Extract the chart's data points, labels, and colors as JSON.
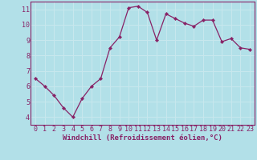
{
  "x": [
    0,
    1,
    2,
    3,
    4,
    5,
    6,
    7,
    8,
    9,
    10,
    11,
    12,
    13,
    14,
    15,
    16,
    17,
    18,
    19,
    20,
    21,
    22,
    23
  ],
  "y": [
    6.5,
    6.0,
    5.4,
    4.6,
    4.0,
    5.2,
    6.0,
    6.5,
    8.5,
    9.2,
    11.1,
    11.2,
    10.8,
    9.0,
    10.7,
    10.4,
    10.1,
    9.9,
    10.3,
    10.3,
    8.9,
    9.1,
    8.5,
    8.4
  ],
  "line_color": "#882266",
  "marker": "D",
  "marker_size": 2.2,
  "bg_color": "#b2e0e8",
  "grid_color": "#c8e8ee",
  "xlabel": "Windchill (Refroidissement éolien,°C)",
  "xlabel_color": "#882266",
  "tick_color": "#882266",
  "spine_color": "#882266",
  "xlim": [
    -0.5,
    23.5
  ],
  "ylim": [
    3.5,
    11.5
  ],
  "yticks": [
    4,
    5,
    6,
    7,
    8,
    9,
    10,
    11
  ],
  "xticks": [
    0,
    1,
    2,
    3,
    4,
    5,
    6,
    7,
    8,
    9,
    10,
    11,
    12,
    13,
    14,
    15,
    16,
    17,
    18,
    19,
    20,
    21,
    22,
    23
  ],
  "tick_fontsize": 6.0,
  "xlabel_fontsize": 6.5
}
